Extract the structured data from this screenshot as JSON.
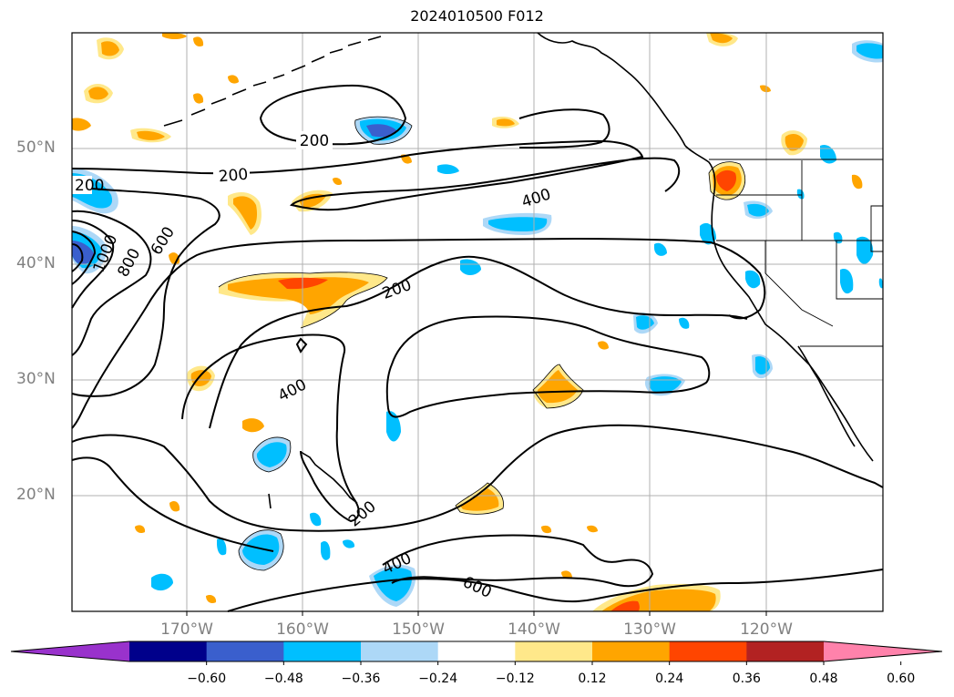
{
  "title": "2024010500 F012",
  "lat_labels": [
    "50°N",
    "40°N",
    "30°N",
    "20°N"
  ],
  "lon_labels": [
    "170°W",
    "160°W",
    "150°W",
    "140°W",
    "130°W",
    "120°W"
  ],
  "contour_labels": [
    "200",
    "200",
    "200",
    "200",
    "200",
    "400",
    "400",
    "400",
    "600",
    "600",
    "800",
    "1000"
  ],
  "colorbar": {
    "tick_labels": [
      "−0.60",
      "−0.48",
      "−0.36",
      "−0.24",
      "−0.12",
      "0.12",
      "0.24",
      "0.36",
      "0.48",
      "0.60"
    ],
    "colors": [
      "#9932cc",
      "#00008b",
      "#3a5fcd",
      "#00bfff",
      "#add8f7",
      "#ffffff",
      "#ffe88a",
      "#ffa500",
      "#ff4500",
      "#b22222",
      "#ff82ab"
    ],
    "extend": "both"
  },
  "map_info": {
    "projection": "cylindrical",
    "lon_range": [
      "180°W",
      "110°W"
    ],
    "lat_range": [
      "10°N",
      "60°N"
    ],
    "grid": true
  }
}
